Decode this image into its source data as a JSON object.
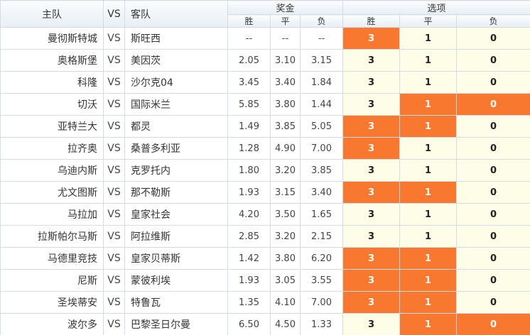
{
  "header": {
    "home": "主队",
    "vs": "VS",
    "away": "客队",
    "bonus": "奖金",
    "options": "选项",
    "win": "胜",
    "draw": "平",
    "lose": "负"
  },
  "colors": {
    "selected": "#f97830",
    "option_bg": "#fdfde8",
    "border": "#d2dce6"
  },
  "matches": [
    {
      "home": "曼彻斯特城",
      "vs": "VS",
      "away": "斯旺西",
      "odds": [
        "--",
        "--",
        "--"
      ],
      "opts": [
        "3",
        "1",
        "0"
      ],
      "sel": [
        true,
        false,
        false
      ]
    },
    {
      "home": "奥格斯堡",
      "vs": "VS",
      "away": "美因茨",
      "odds": [
        "2.05",
        "3.10",
        "3.15"
      ],
      "opts": [
        "3",
        "1",
        "0"
      ],
      "sel": [
        false,
        false,
        false
      ]
    },
    {
      "home": "科隆",
      "vs": "VS",
      "away": "沙尔克04",
      "odds": [
        "3.45",
        "3.40",
        "1.84"
      ],
      "opts": [
        "3",
        "1",
        "0"
      ],
      "sel": [
        false,
        false,
        false
      ]
    },
    {
      "home": "切沃",
      "vs": "VS",
      "away": "国际米兰",
      "odds": [
        "5.85",
        "3.80",
        "1.44"
      ],
      "opts": [
        "3",
        "1",
        "0"
      ],
      "sel": [
        false,
        true,
        true
      ]
    },
    {
      "home": "亚特兰大",
      "vs": "VS",
      "away": "都灵",
      "odds": [
        "1.49",
        "3.85",
        "5.05"
      ],
      "opts": [
        "3",
        "1",
        "0"
      ],
      "sel": [
        true,
        true,
        false
      ]
    },
    {
      "home": "拉齐奥",
      "vs": "VS",
      "away": "桑普多利亚",
      "odds": [
        "1.28",
        "4.90",
        "7.00"
      ],
      "opts": [
        "3",
        "1",
        "0"
      ],
      "sel": [
        true,
        false,
        false
      ]
    },
    {
      "home": "乌迪内斯",
      "vs": "VS",
      "away": "克罗托内",
      "odds": [
        "1.80",
        "3.20",
        "3.85"
      ],
      "opts": [
        "3",
        "1",
        "0"
      ],
      "sel": [
        false,
        false,
        false
      ]
    },
    {
      "home": "尤文图斯",
      "vs": "VS",
      "away": "那不勒斯",
      "odds": [
        "1.93",
        "3.15",
        "3.40"
      ],
      "opts": [
        "3",
        "1",
        "0"
      ],
      "sel": [
        true,
        true,
        false
      ]
    },
    {
      "home": "马拉加",
      "vs": "VS",
      "away": "皇家社会",
      "odds": [
        "4.20",
        "3.50",
        "1.65"
      ],
      "opts": [
        "3",
        "1",
        "0"
      ],
      "sel": [
        false,
        false,
        false
      ]
    },
    {
      "home": "拉斯帕尔马斯",
      "vs": "VS",
      "away": "阿拉维斯",
      "odds": [
        "2.85",
        "3.20",
        "2.15"
      ],
      "opts": [
        "3",
        "1",
        "0"
      ],
      "sel": [
        false,
        false,
        false
      ]
    },
    {
      "home": "马德里竞技",
      "vs": "VS",
      "away": "皇家贝蒂斯",
      "odds": [
        "1.42",
        "3.80",
        "6.20"
      ],
      "opts": [
        "3",
        "1",
        "0"
      ],
      "sel": [
        true,
        true,
        false
      ]
    },
    {
      "home": "尼斯",
      "vs": "VS",
      "away": "蒙彼利埃",
      "odds": [
        "1.93",
        "3.05",
        "3.55"
      ],
      "opts": [
        "3",
        "1",
        "0"
      ],
      "sel": [
        true,
        true,
        false
      ]
    },
    {
      "home": "圣埃蒂安",
      "vs": "VS",
      "away": "特鲁瓦",
      "odds": [
        "1.35",
        "4.10",
        "7.00"
      ],
      "opts": [
        "3",
        "1",
        "0"
      ],
      "sel": [
        true,
        true,
        false
      ]
    },
    {
      "home": "波尔多",
      "vs": "VS",
      "away": "巴黎圣日尔曼",
      "odds": [
        "6.50",
        "4.50",
        "1.33"
      ],
      "opts": [
        "3",
        "1",
        "0"
      ],
      "sel": [
        false,
        true,
        true
      ]
    }
  ]
}
